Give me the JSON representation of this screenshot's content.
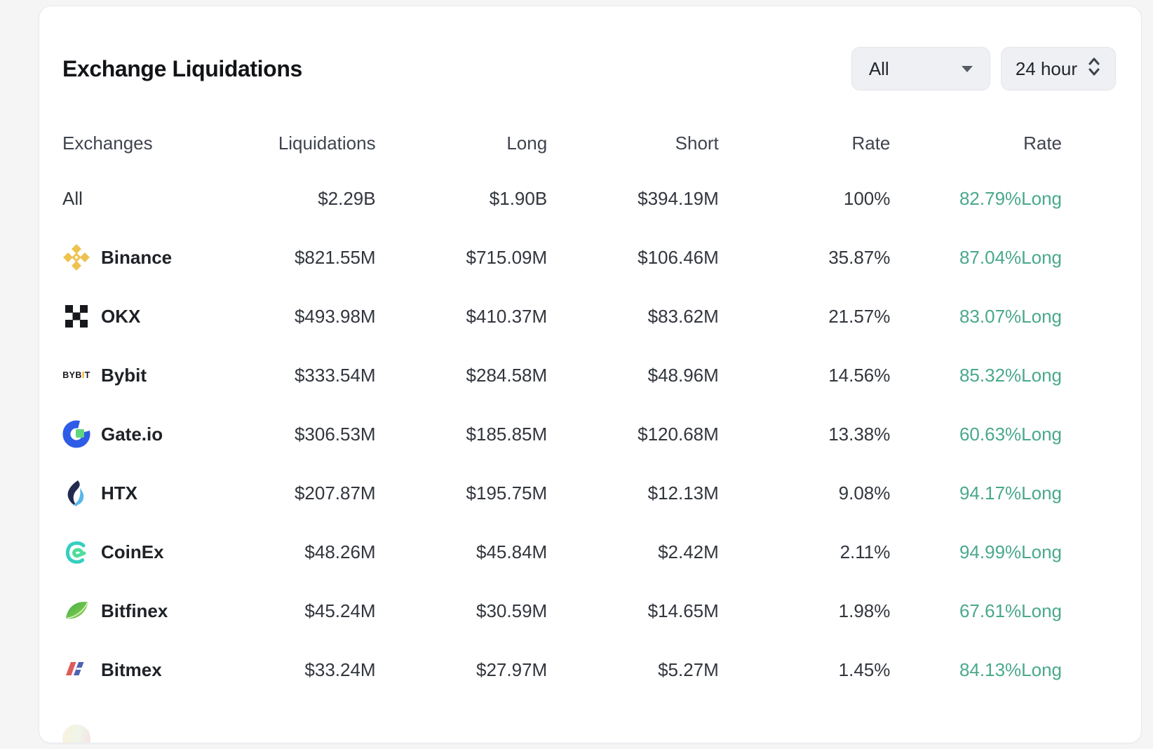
{
  "colors": {
    "positive_rate": "#4AA88C",
    "card_background": "#ffffff",
    "page_background": "#f5f5f6"
  },
  "header": {
    "title": "Exchange Liquidations",
    "asset_filter": {
      "value": "All",
      "icon": "dropdown-caret-icon"
    },
    "period_filter": {
      "value": "24 hour",
      "icon": "updown-chevron-icon"
    }
  },
  "table": {
    "columns": [
      "Exchanges",
      "Liquidations",
      "Long",
      "Short",
      "Rate",
      "Rate"
    ],
    "rows": [
      {
        "exchange": "All",
        "icon": null,
        "liquidations": "$2.29B",
        "long": "$1.90B",
        "short": "$394.19M",
        "rate": "100%",
        "long_rate": "82.79%Long"
      },
      {
        "exchange": "Binance",
        "icon": "binance",
        "liquidations": "$821.55M",
        "long": "$715.09M",
        "short": "$106.46M",
        "rate": "35.87%",
        "long_rate": "87.04%Long"
      },
      {
        "exchange": "OKX",
        "icon": "okx",
        "liquidations": "$493.98M",
        "long": "$410.37M",
        "short": "$83.62M",
        "rate": "21.57%",
        "long_rate": "83.07%Long"
      },
      {
        "exchange": "Bybit",
        "icon": "bybit",
        "liquidations": "$333.54M",
        "long": "$284.58M",
        "short": "$48.96M",
        "rate": "14.56%",
        "long_rate": "85.32%Long"
      },
      {
        "exchange": "Gate.io",
        "icon": "gateio",
        "liquidations": "$306.53M",
        "long": "$185.85M",
        "short": "$120.68M",
        "rate": "13.38%",
        "long_rate": "60.63%Long"
      },
      {
        "exchange": "HTX",
        "icon": "htx",
        "liquidations": "$207.87M",
        "long": "$195.75M",
        "short": "$12.13M",
        "rate": "9.08%",
        "long_rate": "94.17%Long"
      },
      {
        "exchange": "CoinEx",
        "icon": "coinex",
        "liquidations": "$48.26M",
        "long": "$45.84M",
        "short": "$2.42M",
        "rate": "2.11%",
        "long_rate": "94.99%Long"
      },
      {
        "exchange": "Bitfinex",
        "icon": "bitfinex",
        "liquidations": "$45.24M",
        "long": "$30.59M",
        "short": "$14.65M",
        "rate": "1.98%",
        "long_rate": "67.61%Long"
      },
      {
        "exchange": "Bitmex",
        "icon": "bitmex",
        "liquidations": "$33.24M",
        "long": "$27.97M",
        "short": "$5.27M",
        "rate": "1.45%",
        "long_rate": "84.13%Long"
      }
    ]
  }
}
